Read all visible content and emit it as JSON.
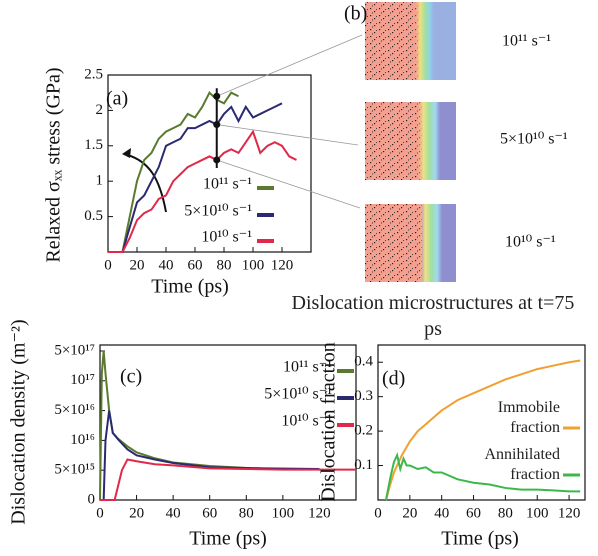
{
  "chart_data": [
    {
      "type": "line",
      "panel_label": "(a)",
      "xlabel": "Time (ps)",
      "ylabel": "Relaxed σₓₓ stress (GPa)",
      "xlim": [
        0,
        140
      ],
      "ylim": [
        0,
        2.5
      ],
      "xticks": [
        0,
        20,
        40,
        60,
        80,
        100,
        120
      ],
      "yticks": [
        0.5,
        1,
        1.5,
        2,
        2.5
      ],
      "x": [
        0,
        5,
        10,
        15,
        20,
        25,
        30,
        35,
        40,
        45,
        50,
        55,
        60,
        65,
        70,
        75,
        80,
        85,
        90,
        95,
        100,
        105,
        110,
        115,
        120,
        125,
        130
      ],
      "series": [
        {
          "name": "10¹¹ s⁻¹",
          "color": "#5a7a2e",
          "values": [
            0,
            0,
            0,
            0.5,
            1.0,
            1.3,
            1.4,
            1.6,
            1.7,
            1.75,
            1.8,
            1.95,
            1.9,
            2.05,
            2.25,
            2.15,
            2.1,
            2.25,
            2.2,
            null,
            null,
            null,
            null,
            null,
            null,
            null,
            null
          ]
        },
        {
          "name": "5×10¹⁰ s⁻¹",
          "color": "#2a2a70",
          "values": [
            0,
            0,
            0,
            0.35,
            0.7,
            0.8,
            1.0,
            1.2,
            1.5,
            1.55,
            1.6,
            1.75,
            1.75,
            1.8,
            1.85,
            1.8,
            1.95,
            2.05,
            1.85,
            2.05,
            1.9,
            1.95,
            2.0,
            2.05,
            2.1,
            null,
            null
          ]
        },
        {
          "name": "10¹⁰ s⁻¹",
          "color": "#e0284a",
          "values": [
            0,
            0,
            0,
            0.2,
            0.45,
            0.55,
            0.6,
            0.75,
            0.8,
            1.0,
            1.1,
            1.2,
            1.25,
            1.3,
            1.35,
            1.3,
            1.4,
            1.45,
            1.4,
            1.55,
            1.7,
            1.4,
            1.5,
            1.55,
            1.5,
            1.35,
            1.3
          ]
        }
      ],
      "marker_x": 75,
      "marker_values": [
        2.2,
        1.8,
        1.3
      ]
    },
    {
      "type": "line",
      "panel_label": "(c)",
      "xlabel": "Time (ps)",
      "ylabel": "Dislocation density (m⁻²)",
      "xlim": [
        0,
        140
      ],
      "ylim": [
        0,
        5e+17
      ],
      "y_scale": "tick-spaced",
      "xticks": [
        0,
        20,
        40,
        60,
        80,
        100,
        120
      ],
      "yticks": [
        0,
        {
          "value": 5000000000000000.0,
          "label": "5×10¹⁵"
        },
        {
          "value": 1e+16,
          "label": "10¹⁶"
        },
        {
          "value": 5e+16,
          "label": "5×10¹⁶"
        },
        {
          "value": 1e+17,
          "label": "10¹⁷"
        },
        {
          "value": 5e+17,
          "label": "5×10¹⁷"
        }
      ],
      "series": [
        {
          "name": "10¹¹ s⁻¹",
          "color": "#5a7a2e",
          "x": [
            0,
            1,
            2,
            3,
            5,
            7,
            10,
            15,
            20,
            30,
            40,
            60,
            85
          ],
          "values": [
            0,
            2e+17,
            5e+17,
            2e+17,
            5e+16,
            2e+16,
            1.2e+16,
            9000000000000000.0,
            8000000000000000.0,
            7000000000000000.0,
            6300000000000000.0,
            5700000000000000.0,
            5300000000000000.0
          ]
        },
        {
          "name": "5×10¹⁰ s⁻¹",
          "color": "#2a2a70",
          "x": [
            0,
            2,
            3,
            5,
            7,
            10,
            15,
            20,
            30,
            40,
            60,
            90,
            120
          ],
          "values": [
            0,
            0,
            1e+16,
            5e+16,
            2e+16,
            1.1e+16,
            8500000000000000.0,
            7500000000000000.0,
            6800000000000000.0,
            6200000000000000.0,
            5500000000000000.0,
            5300000000000000.0,
            5200000000000000.0
          ]
        },
        {
          "name": "10¹⁰ s⁻¹",
          "color": "#e0284a",
          "x": [
            0,
            8,
            12,
            15,
            20,
            30,
            40,
            60,
            100,
            140
          ],
          "values": [
            0,
            0,
            5000000000000000.0,
            6800000000000000.0,
            6500000000000000.0,
            6000000000000000.0,
            5800000000000000.0,
            5300000000000000.0,
            5100000000000000.0,
            5100000000000000.0
          ]
        }
      ]
    },
    {
      "type": "line",
      "panel_label": "(d)",
      "xlabel": "Time (ps)",
      "ylabel": "Dislocation fraction",
      "xlim": [
        0,
        130
      ],
      "ylim": [
        0,
        0.45
      ],
      "xticks": [
        0,
        20,
        40,
        60,
        80,
        100,
        120
      ],
      "yticks": [
        0.1,
        0.2,
        0.3,
        0.4
      ],
      "series": [
        {
          "name": "Immobile fraction",
          "color": "#f0a030",
          "x": [
            5,
            8,
            10,
            12,
            15,
            20,
            25,
            30,
            40,
            50,
            60,
            70,
            80,
            90,
            100,
            110,
            120,
            127
          ],
          "values": [
            0,
            0.05,
            0.08,
            0.1,
            0.13,
            0.17,
            0.2,
            0.22,
            0.26,
            0.29,
            0.31,
            0.33,
            0.35,
            0.365,
            0.38,
            0.39,
            0.4,
            0.405
          ]
        },
        {
          "name": "Annihilated fraction",
          "color": "#3cb84a",
          "x": [
            5,
            8,
            10,
            12,
            14,
            16,
            18,
            20,
            25,
            30,
            35,
            40,
            50,
            60,
            70,
            80,
            90,
            100,
            110,
            120,
            127
          ],
          "values": [
            0,
            0.07,
            0.11,
            0.13,
            0.09,
            0.12,
            0.1,
            0.1,
            0.09,
            0.095,
            0.08,
            0.08,
            0.06,
            0.05,
            0.045,
            0.035,
            0.03,
            0.03,
            0.028,
            0.025,
            0.025
          ]
        }
      ]
    }
  ],
  "panel_b": {
    "label": "(b)",
    "images": [
      {
        "label": "10¹¹ s⁻¹"
      },
      {
        "label": "5×10¹⁰ s⁻¹"
      },
      {
        "label": "10¹⁰ s⁻¹"
      }
    ],
    "caption": "Dislocation microstructures at t=75 ps"
  }
}
